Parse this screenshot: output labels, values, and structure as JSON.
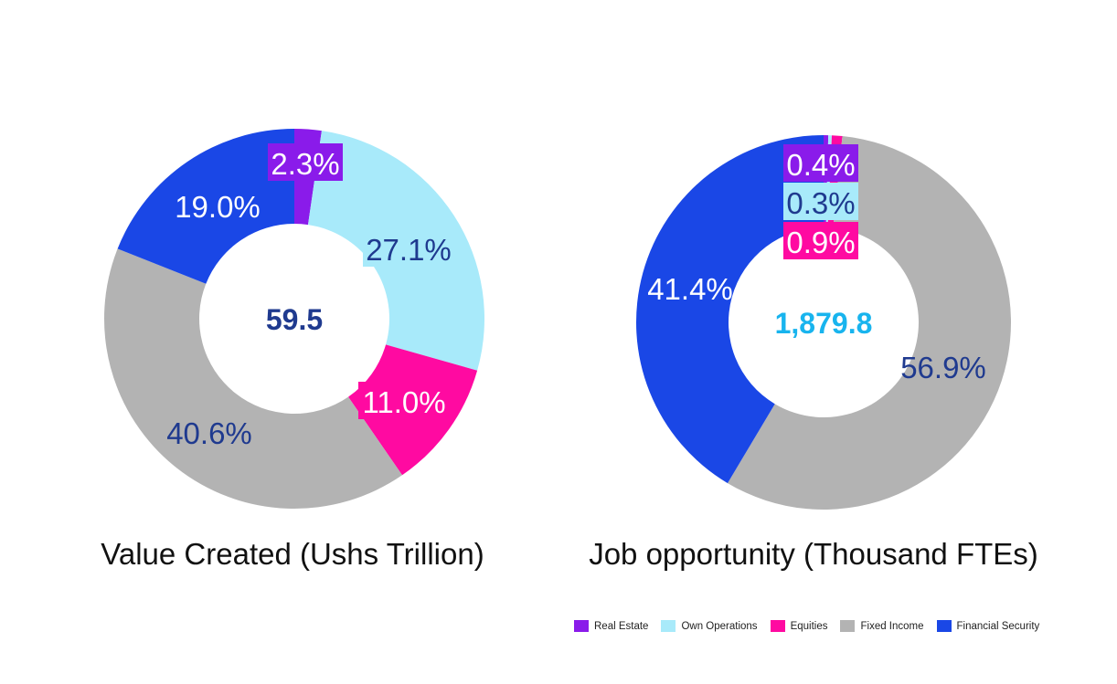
{
  "colors": {
    "real_estate": "#8a1bea",
    "own_operations": "#a8eafa",
    "equities": "#ff0aa1",
    "fixed_income": "#b3b3b3",
    "financial_security": "#1a47e6",
    "dark_label": "#1f3a8f",
    "center_left": "#1f3a8f",
    "center_right": "#18b4ee"
  },
  "chart_data": [
    {
      "type": "pie",
      "title": "Value Created (Ushs Trillion)",
      "center_value": "59.5",
      "slices": [
        {
          "category": "Real Estate",
          "value": 2.3,
          "label": "2.3%"
        },
        {
          "category": "Own Operations",
          "value": 27.1,
          "label": "27.1%"
        },
        {
          "category": "Equities",
          "value": 11.0,
          "label": "11.0%"
        },
        {
          "category": "Fixed Income",
          "value": 40.6,
          "label": "40.6%"
        },
        {
          "category": "Financial Security",
          "value": 19.0,
          "label": "19.0%"
        }
      ]
    },
    {
      "type": "pie",
      "title": "Job opportunity (Thousand FTEs)",
      "center_value": "1,879.8",
      "slices": [
        {
          "category": "Real Estate",
          "value": 0.4,
          "label": "0.4%"
        },
        {
          "category": "Own Operations",
          "value": 0.3,
          "label": "0.3%"
        },
        {
          "category": "Equities",
          "value": 0.9,
          "label": "0.9%"
        },
        {
          "category": "Fixed Income",
          "value": 56.9,
          "label": "56.9%"
        },
        {
          "category": "Financial Security",
          "value": 41.4,
          "label": "41.4%"
        }
      ]
    }
  ],
  "legend": [
    {
      "label": "Real Estate",
      "color": "#8a1bea"
    },
    {
      "label": "Own Operations",
      "color": "#a8eafa"
    },
    {
      "label": "Equities",
      "color": "#ff0aa1"
    },
    {
      "label": "Fixed Income",
      "color": "#b3b3b3"
    },
    {
      "label": "Financial Security",
      "color": "#1a47e6"
    }
  ]
}
